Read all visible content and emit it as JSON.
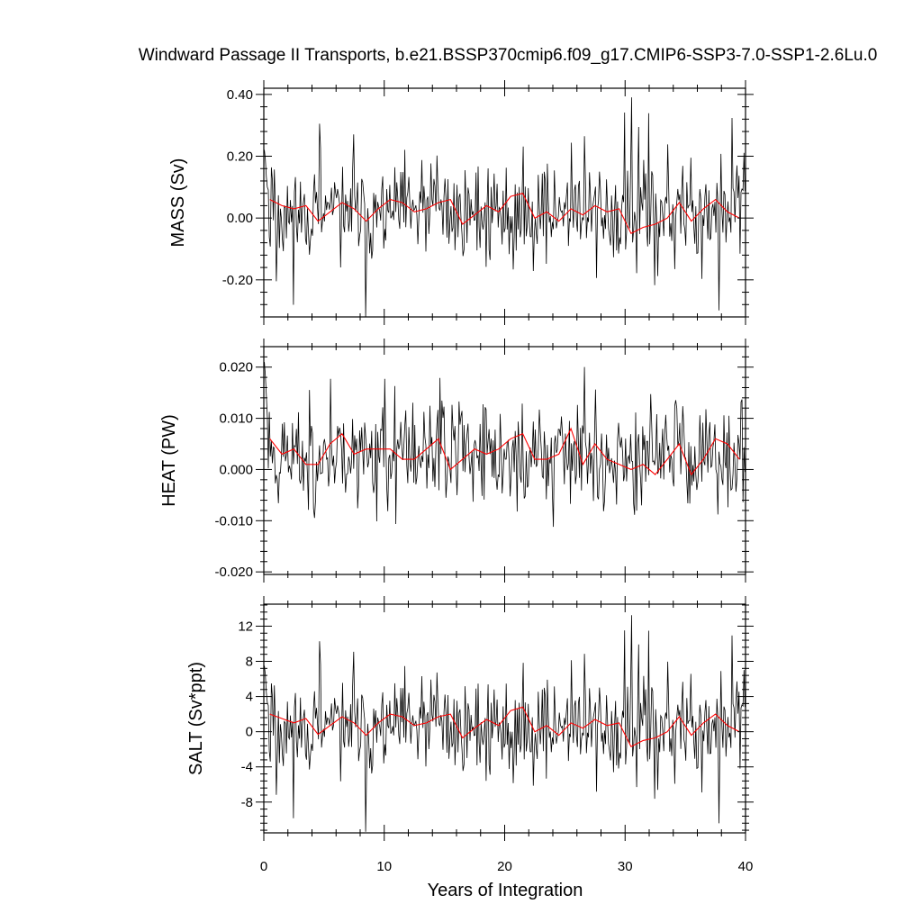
{
  "title": "Windward Passage II Transports, b.e21.BSSP370cmip6.f09_g17.CMIP6-SSP3-7.0-SSP1-2.6Lu.0",
  "xlabel": "Years of Integration",
  "colors": {
    "monthly": "#000000",
    "annual": "#ff0000",
    "axis": "#000000"
  },
  "chart_data": [
    {
      "type": "line",
      "panel": "mass",
      "ylabel": "MASS (Sv)",
      "xlim": [
        0,
        40
      ],
      "ylim": [
        -0.32,
        0.42
      ],
      "xticks": [
        0,
        10,
        20,
        30,
        40
      ],
      "yticks": [
        0.4,
        0.2,
        0.0,
        -0.2
      ],
      "ytick_labels": [
        "0.40",
        "0.20",
        "0.00",
        "-0.20"
      ],
      "series": [
        {
          "style": "monthly",
          "params": {
            "mean": 0.02,
            "amp": 0.075,
            "spike": 0.22,
            "seed": 11,
            "start": 0.22
          }
        },
        {
          "style": "annual",
          "x": [
            0.5,
            1.5,
            2.5,
            3.5,
            4.5,
            5.5,
            6.5,
            7.5,
            8.5,
            9.5,
            10.5,
            11.5,
            12.5,
            13.5,
            14.5,
            15.5,
            16.5,
            17.5,
            18.5,
            19.5,
            20.5,
            21.5,
            22.5,
            23.5,
            24.5,
            25.5,
            26.5,
            27.5,
            28.5,
            29.5,
            30.5,
            31.5,
            32.5,
            33.5,
            34.5,
            35.5,
            36.5,
            37.5,
            38.5,
            39.5
          ],
          "values": [
            0.06,
            0.04,
            0.03,
            0.04,
            -0.01,
            0.02,
            0.05,
            0.03,
            -0.01,
            0.03,
            0.06,
            0.05,
            0.02,
            0.03,
            0.05,
            0.06,
            -0.02,
            0.01,
            0.04,
            0.02,
            0.07,
            0.08,
            0.0,
            0.02,
            -0.01,
            0.03,
            0.01,
            0.04,
            0.02,
            0.03,
            -0.05,
            -0.03,
            -0.02,
            0.0,
            0.05,
            -0.01,
            0.03,
            0.06,
            0.02,
            0.0
          ]
        }
      ]
    },
    {
      "type": "line",
      "panel": "heat",
      "ylabel": "HEAT (PW)",
      "xlim": [
        0,
        40
      ],
      "ylim": [
        -0.0205,
        0.024
      ],
      "xticks": [
        0,
        10,
        20,
        30,
        40
      ],
      "yticks": [
        0.02,
        0.01,
        0.0,
        -0.01,
        -0.02
      ],
      "ytick_labels": [
        "0.020",
        "0.010",
        "0.000",
        "-0.010",
        "-0.020"
      ],
      "series": [
        {
          "style": "monthly",
          "params": {
            "mean": 0.003,
            "amp": 0.0045,
            "spike": 0.013,
            "seed": 23,
            "start": 0.021
          }
        },
        {
          "style": "annual",
          "x": [
            0.5,
            1.5,
            2.5,
            3.5,
            4.5,
            5.5,
            6.5,
            7.5,
            8.5,
            9.5,
            10.5,
            11.5,
            12.5,
            13.5,
            14.5,
            15.5,
            16.5,
            17.5,
            18.5,
            19.5,
            20.5,
            21.5,
            22.5,
            23.5,
            24.5,
            25.5,
            26.5,
            27.5,
            28.5,
            29.5,
            30.5,
            31.5,
            32.5,
            33.5,
            34.5,
            35.5,
            36.5,
            37.5,
            38.5,
            39.5
          ],
          "values": [
            0.006,
            0.003,
            0.004,
            0.001,
            0.001,
            0.005,
            0.007,
            0.003,
            0.004,
            0.004,
            0.004,
            0.002,
            0.002,
            0.004,
            0.006,
            0.0,
            0.002,
            0.004,
            0.003,
            0.004,
            0.006,
            0.007,
            0.002,
            0.002,
            0.003,
            0.008,
            0.001,
            0.005,
            0.002,
            0.001,
            0.0,
            0.001,
            -0.001,
            0.002,
            0.005,
            -0.001,
            0.002,
            0.006,
            0.005,
            0.002
          ]
        }
      ]
    },
    {
      "type": "line",
      "panel": "salt",
      "ylabel": "SALT (Sv*ppt)",
      "xlim": [
        0,
        40
      ],
      "ylim": [
        -11.5,
        14.5
      ],
      "xticks": [
        0,
        10,
        20,
        30,
        40
      ],
      "yticks": [
        12,
        8,
        4,
        0,
        -4,
        -8
      ],
      "ytick_labels": [
        "12",
        "8",
        "4",
        "0",
        "-4",
        "-8"
      ],
      "series": [
        {
          "style": "monthly",
          "params": {
            "mean": 0.5,
            "amp": 2.6,
            "spike": 7.5,
            "seed": 11,
            "start": 7.5
          }
        },
        {
          "style": "annual",
          "x": [
            0.5,
            1.5,
            2.5,
            3.5,
            4.5,
            5.5,
            6.5,
            7.5,
            8.5,
            9.5,
            10.5,
            11.5,
            12.5,
            13.5,
            14.5,
            15.5,
            16.5,
            17.5,
            18.5,
            19.5,
            20.5,
            21.5,
            22.5,
            23.5,
            24.5,
            25.5,
            26.5,
            27.5,
            28.5,
            29.5,
            30.5,
            31.5,
            32.5,
            33.5,
            34.5,
            35.5,
            36.5,
            37.5,
            38.5,
            39.5
          ],
          "values": [
            2.0,
            1.5,
            1.0,
            1.5,
            -0.3,
            0.7,
            1.7,
            1.0,
            -0.4,
            1.0,
            2.0,
            1.7,
            0.7,
            1.0,
            1.7,
            2.0,
            -0.7,
            0.4,
            1.4,
            0.7,
            2.4,
            2.8,
            0.0,
            0.7,
            -0.4,
            1.0,
            0.4,
            1.4,
            0.7,
            1.0,
            -1.7,
            -1.0,
            -0.7,
            0.0,
            1.7,
            -0.4,
            1.0,
            2.0,
            0.7,
            0.0
          ]
        }
      ]
    }
  ]
}
